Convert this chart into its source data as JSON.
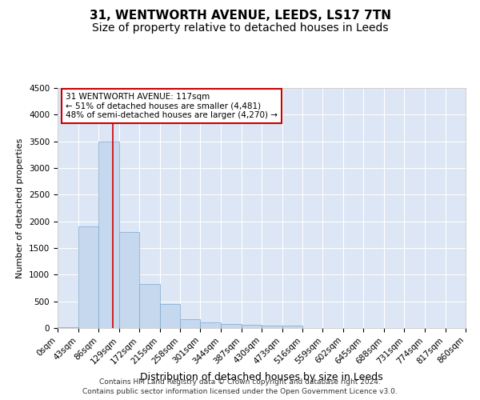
{
  "title1": "31, WENTWORTH AVENUE, LEEDS, LS17 7TN",
  "title2": "Size of property relative to detached houses in Leeds",
  "xlabel": "Distribution of detached houses by size in Leeds",
  "ylabel": "Number of detached properties",
  "bar_color": "#c5d8ee",
  "bar_edge_color": "#7aaad0",
  "background_color": "#ffffff",
  "plot_bg_color": "#dce6f5",
  "grid_color": "#ffffff",
  "red_line_color": "#cc0000",
  "annotation_box_edge": "#cc0000",
  "annotation_line1": "31 WENTWORTH AVENUE: 117sqm",
  "annotation_line2": "← 51% of detached houses are smaller (4,481)",
  "annotation_line3": "48% of semi-detached houses are larger (4,270) →",
  "property_size": 117,
  "bins": [
    0,
    43,
    86,
    129,
    172,
    215,
    258,
    301,
    344,
    387,
    430,
    473,
    516,
    559,
    602,
    645,
    688,
    731,
    774,
    817,
    860
  ],
  "counts": [
    18,
    1900,
    3500,
    1800,
    830,
    450,
    170,
    100,
    70,
    55,
    50,
    40,
    0,
    0,
    0,
    0,
    0,
    0,
    0,
    0
  ],
  "ylim": [
    0,
    4500
  ],
  "yticks": [
    0,
    500,
    1000,
    1500,
    2000,
    2500,
    3000,
    3500,
    4000,
    4500
  ],
  "footnote1": "Contains HM Land Registry data © Crown copyright and database right 2024.",
  "footnote2": "Contains public sector information licensed under the Open Government Licence v3.0.",
  "title1_fontsize": 11,
  "title2_fontsize": 10,
  "xlabel_fontsize": 9,
  "ylabel_fontsize": 8,
  "tick_fontsize": 7.5,
  "annotation_fontsize": 7.5,
  "footnote_fontsize": 6.5
}
